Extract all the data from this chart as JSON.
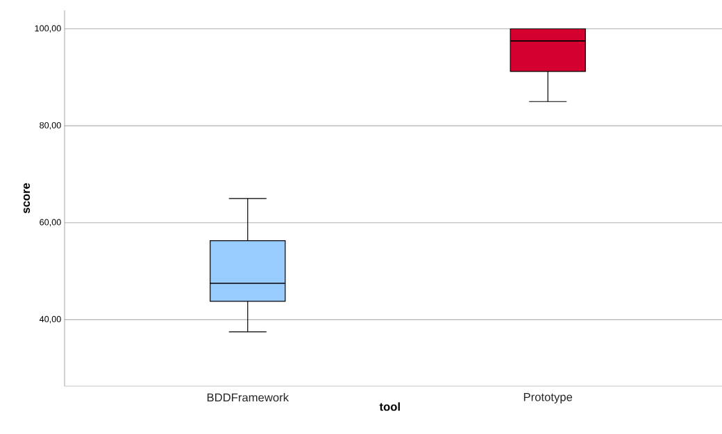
{
  "chart_data": {
    "type": "box",
    "xlabel": "tool",
    "ylabel": "score",
    "categories": [
      "BDDFramework",
      "Prototype"
    ],
    "boxes": [
      {
        "low": 37.5,
        "q1": 43.8,
        "median": 47.5,
        "q3": 56.3,
        "high": 65.0
      },
      {
        "low": 85.0,
        "q1": 91.2,
        "median": 97.5,
        "q3": 100.0,
        "high": 100.0
      }
    ],
    "colors": [
      "#99ccff",
      "#d30030"
    ],
    "ylim": [
      26.3,
      103.8
    ],
    "yticks": [
      {
        "value": 40,
        "label": "40,00"
      },
      {
        "value": 60,
        "label": "60,00"
      },
      {
        "value": 80,
        "label": "80,00"
      },
      {
        "value": 100,
        "label": "100,00"
      }
    ],
    "grid": "y"
  }
}
